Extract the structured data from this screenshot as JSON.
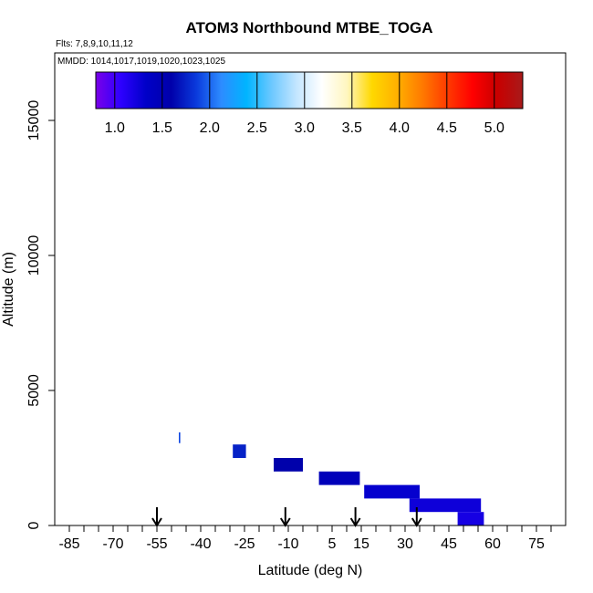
{
  "chart_data": {
    "type": "heatmap",
    "title": "ATOM3 Northbound MTBE_TOGA",
    "subtitle_flights": "Flts: 7,8,9,10,11,12",
    "subtitle_dates": "MMDD: 1014,1017,1019,1020,1023,1025",
    "xlabel": "Latitude (deg N)",
    "ylabel": "Altitude (m)",
    "xlim": [
      -90,
      85
    ],
    "ylim": [
      0,
      17500
    ],
    "x_ticks": [
      "-85",
      "-70",
      "-55",
      "-40",
      "-25",
      "-10",
      "5",
      "15",
      "30",
      "45",
      "60",
      "75"
    ],
    "x_tick_values": [
      -85,
      -70,
      -55,
      -40,
      -25,
      -10,
      5,
      15,
      30,
      45,
      60,
      75
    ],
    "y_ticks": [
      "0",
      "5000",
      "10000",
      "15000"
    ],
    "y_tick_values": [
      0,
      5000,
      10000,
      15000
    ],
    "colorbar": {
      "min": 0.8,
      "max": 5.3,
      "tick_labels": [
        "1.0",
        "1.5",
        "2.0",
        "2.5",
        "3.0",
        "3.5",
        "4.0",
        "4.5",
        "5.0"
      ],
      "tick_values": [
        1.0,
        1.5,
        2.0,
        2.5,
        3.0,
        3.5,
        4.0,
        4.5,
        5.0
      ],
      "divider_values": [
        1.0,
        1.5,
        2.0,
        2.5,
        3.0,
        3.5,
        4.0,
        4.5,
        5.0
      ]
    },
    "cells": [
      {
        "lat0": -47.5,
        "lat1": -47.0,
        "alt0": 3050,
        "alt1": 3450,
        "value": 1.9
      },
      {
        "lat0": -29.0,
        "lat1": -24.5,
        "alt0": 2500,
        "alt1": 3000,
        "value": 1.75
      },
      {
        "lat0": -15.0,
        "lat1": -5.0,
        "alt0": 2000,
        "alt1": 2500,
        "value": 1.6
      },
      {
        "lat0": 0.5,
        "lat1": 14.5,
        "alt0": 1500,
        "alt1": 2000,
        "value": 1.45
      },
      {
        "lat0": 16.0,
        "lat1": 35.0,
        "alt0": 1000,
        "alt1": 1500,
        "value": 1.3
      },
      {
        "lat0": 31.5,
        "lat1": 56.0,
        "alt0": 500,
        "alt1": 1000,
        "value": 1.25
      },
      {
        "lat0": 48.0,
        "lat1": 57.0,
        "alt0": 0,
        "alt1": 500,
        "value": 1.2
      }
    ],
    "arrows_lat": [
      -55,
      -11,
      13,
      34
    ]
  },
  "colors": {
    "scale": [
      "#7a00e8",
      "#2d00ff",
      "#0000c8",
      "#0000aa",
      "#0a3adc",
      "#2d8cff",
      "#00b4ff",
      "#6cc8ff",
      "#c4e6ff",
      "#ffffff",
      "#fff6c0",
      "#ffd800",
      "#ffb000",
      "#ff7a00",
      "#ff3a00",
      "#ff0000",
      "#c80000",
      "#a81a1a"
    ],
    "axis": "#000000"
  }
}
